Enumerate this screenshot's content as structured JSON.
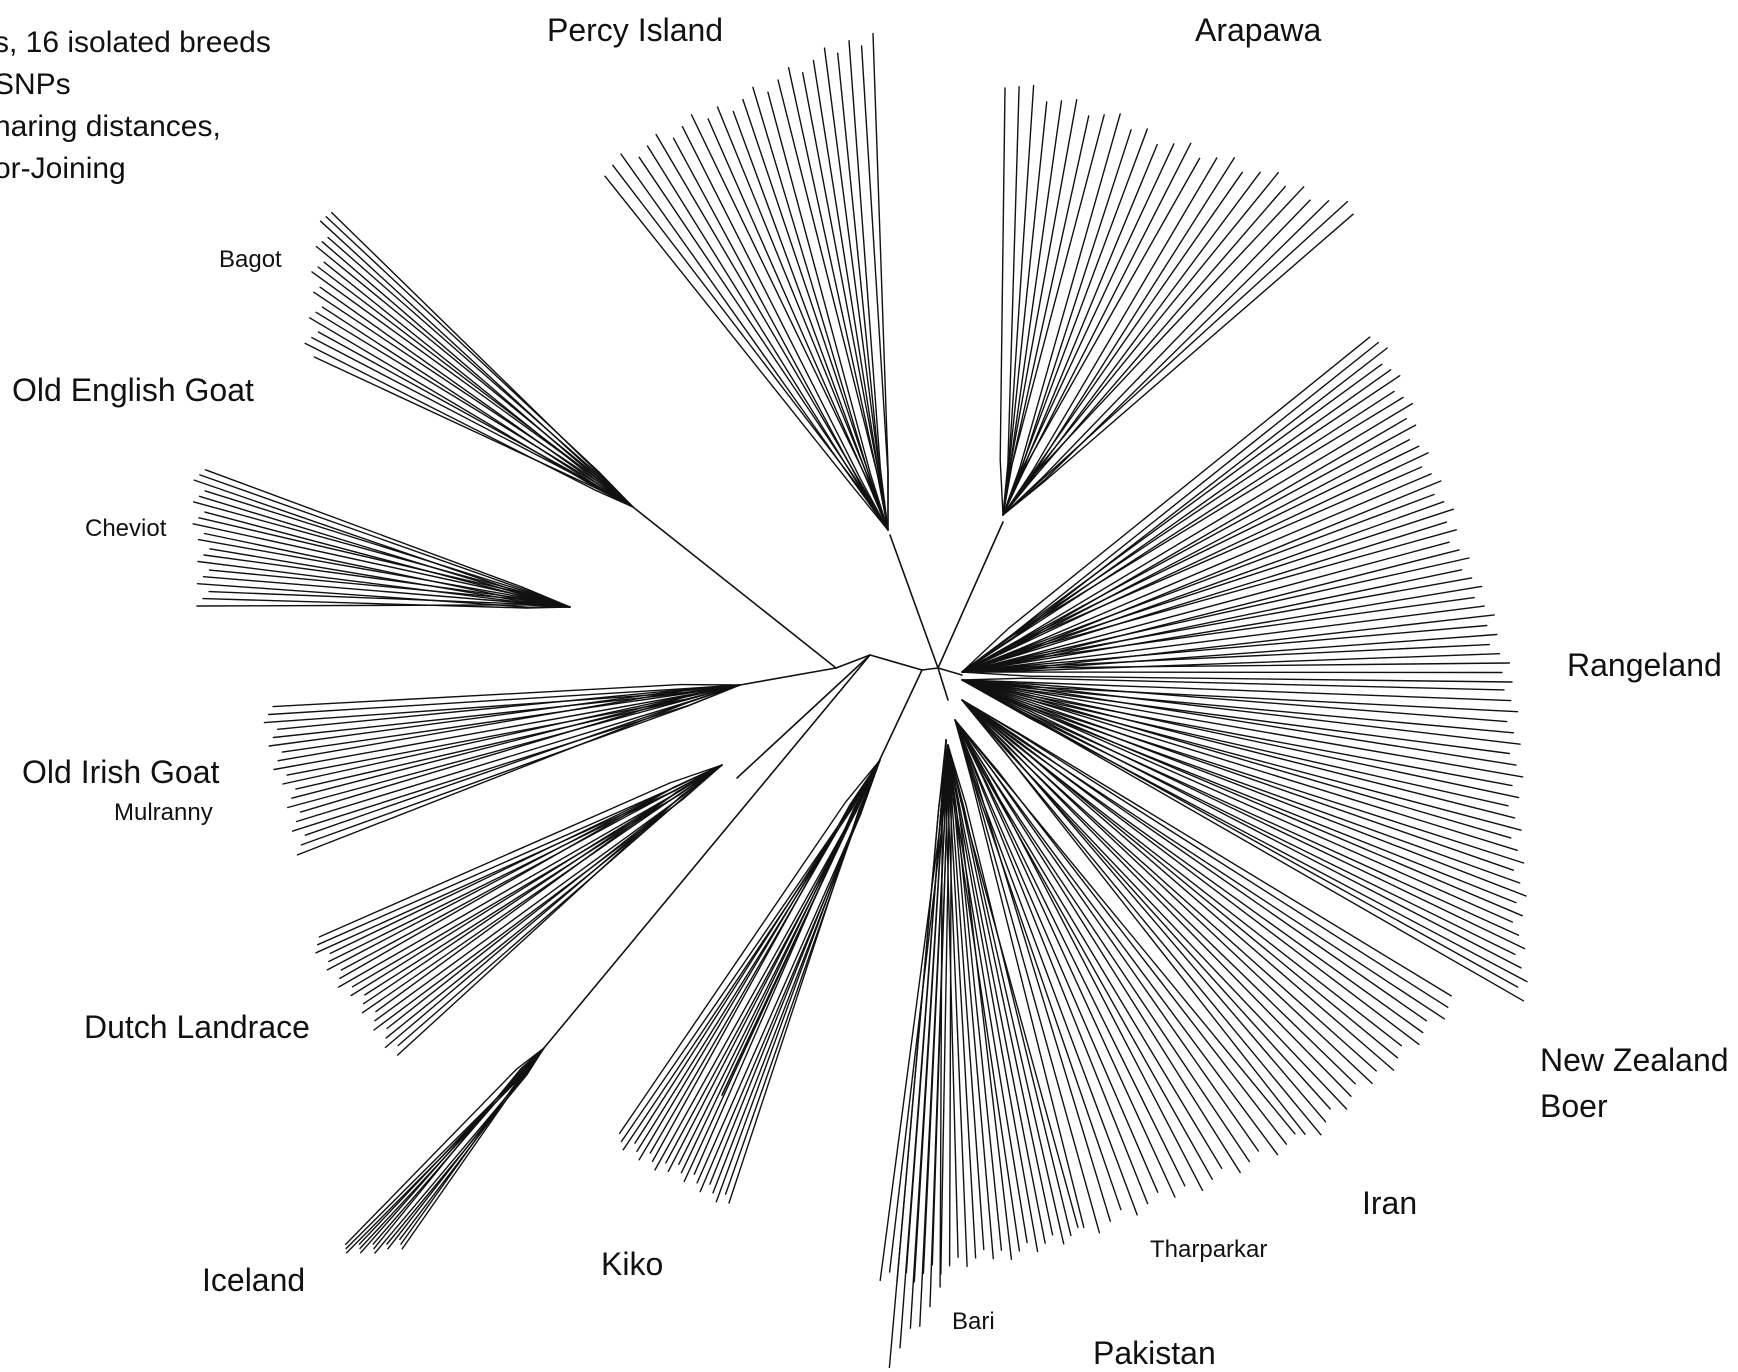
{
  "notes": [
    "s, 16 isolated breeds",
    "SNPs",
    "haring distances,",
    "or-Joining"
  ],
  "labels": {
    "percy_island": "Percy Island",
    "arapawa": "Arapawa",
    "bagot": "Bagot",
    "old_english_goat": "Old English Goat",
    "cheviot": "Cheviot",
    "rangeland": "Rangeland",
    "old_irish_goat": "Old Irish Goat",
    "mulranny": "Mulranny",
    "dutch_landrace": "Dutch Landrace",
    "new_zealand": "New Zealand",
    "boer": "Boer",
    "iran": "Iran",
    "tharparkar": "Tharparkar",
    "iceland": "Iceland",
    "kiko": "Kiko",
    "bari": "Bari",
    "pakistan": "Pakistan"
  },
  "colors": {
    "line": "#111111",
    "background": "#ffffff"
  }
}
